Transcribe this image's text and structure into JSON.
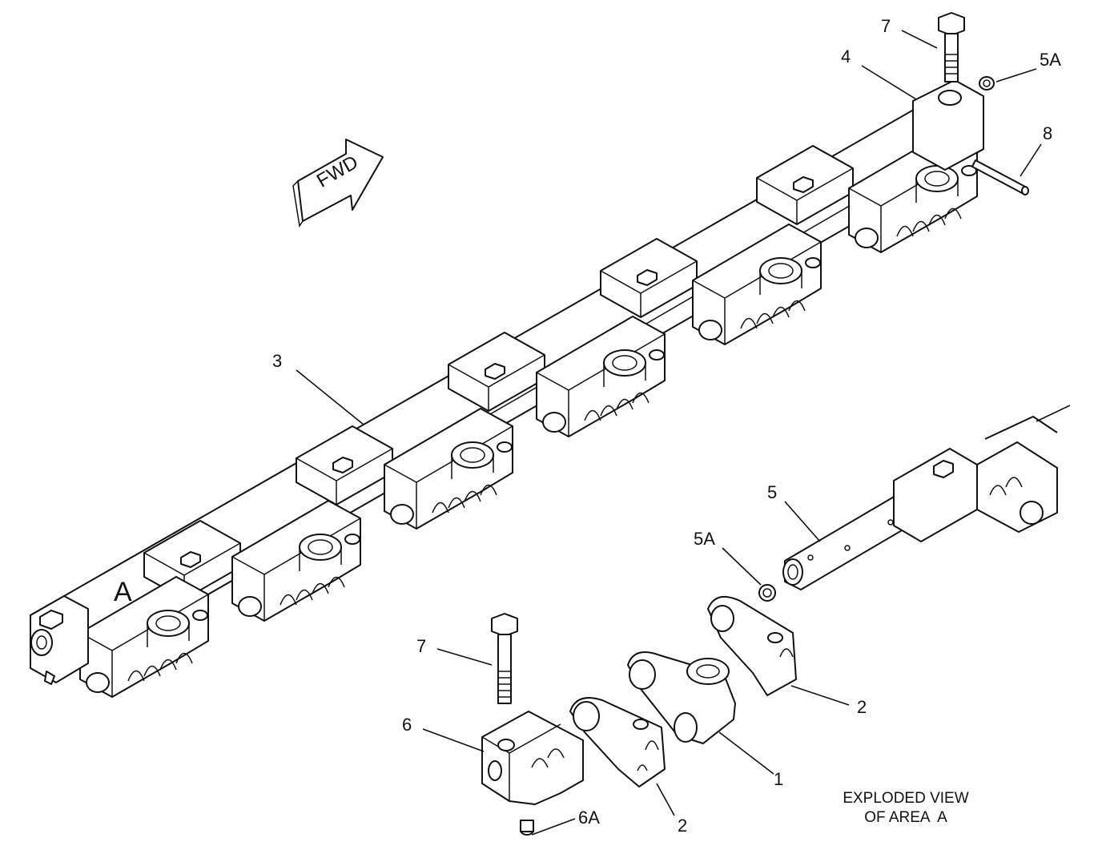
{
  "arrow_label": "FWD",
  "area_marker": "A",
  "callouts": {
    "c7_top": "7",
    "c4": "4",
    "c5a_top": "5A",
    "c8": "8",
    "c3": "3",
    "c5": "5",
    "c5a_mid": "5A",
    "c7_bottom": "7",
    "c6": "6",
    "c6a": "6A",
    "c2_right": "2",
    "c1": "1",
    "c2_bottom": "2"
  },
  "caption": {
    "line1": "EXPLODED VIEW",
    "line2": "OF AREA  A"
  }
}
